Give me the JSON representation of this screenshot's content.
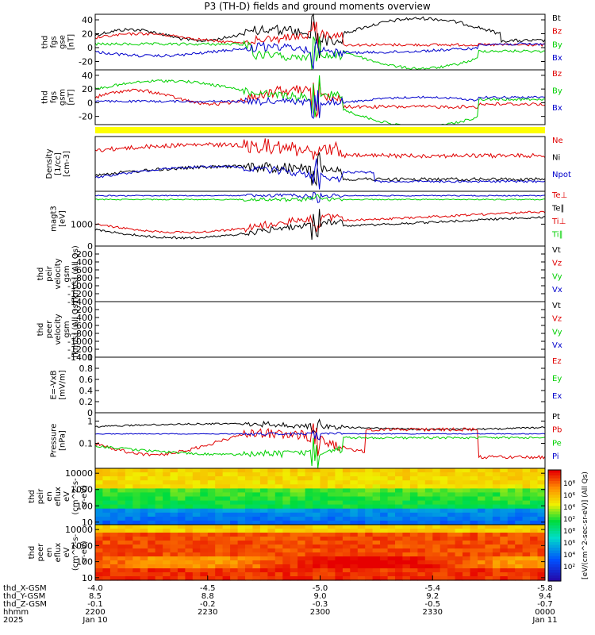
{
  "title": "P3 (TH-D) fields and ground moments overview",
  "colors": {
    "black": "#000000",
    "red": "#e00000",
    "green": "#00d000",
    "blue": "#0000cc",
    "yellow": "#ffff00"
  },
  "chart_data": [
    {
      "type": "line",
      "panel": "fgs_gse",
      "ylabel_lines": [
        "thd",
        "fgs",
        "gse",
        "[nT]"
      ],
      "yticks": [
        40,
        20,
        0,
        -20
      ],
      "ylim": [
        -32,
        48
      ],
      "series": [
        {
          "name": "Bt",
          "color": "black"
        },
        {
          "name": "Bz",
          "color": "red"
        },
        {
          "name": "By",
          "color": "green"
        },
        {
          "name": "Bx",
          "color": "blue"
        }
      ]
    },
    {
      "type": "line",
      "panel": "fgs_gsm",
      "ylabel_lines": [
        "thd",
        "fgs",
        "gsm",
        "[nT]"
      ],
      "yticks": [
        40,
        20,
        0,
        -20
      ],
      "ylim": [
        -32,
        48
      ],
      "series": [
        {
          "name": "Bz",
          "color": "red"
        },
        {
          "name": "By",
          "color": "green"
        },
        {
          "name": "Bx",
          "color": "blue"
        }
      ]
    },
    {
      "type": "line",
      "panel": "density",
      "ylabel_lines": [
        "Density",
        "[1/cc]",
        "[cm-3]"
      ],
      "yticks": [],
      "series": [
        {
          "name": "Ne",
          "color": "red"
        },
        {
          "name": "Ni",
          "color": "black"
        },
        {
          "name": "Npot",
          "color": "blue"
        }
      ]
    },
    {
      "type": "line",
      "panel": "temperature",
      "ylabel_lines": [
        "magt3",
        "[eV]"
      ],
      "yticks": [
        1000
      ],
      "yscale": "log",
      "series": [
        {
          "name": "Te⊥",
          "color": "red"
        },
        {
          "name": "Te∥",
          "color": "black"
        },
        {
          "name": "Ti⊥",
          "color": "red"
        },
        {
          "name": "Ti∥",
          "color": "green"
        }
      ]
    },
    {
      "type": "line",
      "panel": "ion_velocity",
      "ylabel_lines": [
        "thd",
        "peir",
        "velocity",
        "gsm",
        "[km/s] (All Qs)"
      ],
      "yticks": [
        0,
        -200,
        -400,
        -600,
        -800,
        -1000,
        -1200,
        -1400
      ],
      "ylim": [
        -1400,
        0
      ],
      "series": [
        {
          "name": "Vt",
          "color": "black"
        },
        {
          "name": "Vz",
          "color": "red"
        },
        {
          "name": "Vy",
          "color": "green"
        },
        {
          "name": "Vx",
          "color": "blue"
        }
      ]
    },
    {
      "type": "line",
      "panel": "electron_velocity",
      "ylabel_lines": [
        "thd",
        "peer",
        "velocity",
        "gsm",
        "[km/s] (All Qs)"
      ],
      "yticks": [
        -200,
        -400,
        -600,
        -800,
        -1000,
        -1200,
        -1400
      ],
      "ylim": [
        -1400,
        0
      ],
      "series": [
        {
          "name": "Vt",
          "color": "black"
        },
        {
          "name": "Vz",
          "color": "red"
        },
        {
          "name": "Vy",
          "color": "green"
        },
        {
          "name": "Vx",
          "color": "blue"
        }
      ]
    },
    {
      "type": "line",
      "panel": "efield",
      "ylabel_lines": [
        "E=-VxB",
        "[mV/m]"
      ],
      "yticks": [
        1.0,
        0.8,
        0.6,
        0.4,
        0.2,
        0.0
      ],
      "ylim": [
        0,
        1
      ],
      "series": [
        {
          "name": "Ez",
          "color": "red"
        },
        {
          "name": "Ey",
          "color": "green"
        },
        {
          "name": "Ex",
          "color": "blue"
        }
      ]
    },
    {
      "type": "line",
      "panel": "pressure",
      "ylabel_lines": [
        "Pressure",
        "[nPa]"
      ],
      "yticks": [
        1,
        0.1
      ],
      "yscale": "log",
      "series": [
        {
          "name": "Pt",
          "color": "black"
        },
        {
          "name": "Pb",
          "color": "red"
        },
        {
          "name": "Pe",
          "color": "green"
        },
        {
          "name": "Pi",
          "color": "blue"
        }
      ]
    },
    {
      "type": "heatmap",
      "panel": "ion_spectrogram",
      "ylabel_lines": [
        "thd",
        "peir",
        "en",
        "eflux",
        "eV",
        "(cm^2-s-",
        "sr-eV)"
      ],
      "yticks": [
        10000,
        1000,
        100,
        10
      ],
      "yscale": "log"
    },
    {
      "type": "heatmap",
      "panel": "electron_spectrogram",
      "ylabel_lines": [
        "thd",
        "peer",
        "en",
        "eflux",
        "eV",
        "(cm^2-s-",
        "sr-eV)"
      ],
      "yticks": [
        10000,
        1000,
        100,
        10
      ],
      "yscale": "log"
    }
  ],
  "colorbar": {
    "label": "[eV/(cm^2-sec-sr-eV)] (All Qs)",
    "ticks_upper": [
      "10⁸",
      "10⁶",
      "10⁴",
      "10²"
    ],
    "ticks_lower": [
      "10⁸",
      "10⁶",
      "10⁴",
      "10²"
    ]
  },
  "x_axis": {
    "row_labels": [
      "thd_X-GSM",
      "thd_Y-GSM",
      "thd_Z-GSM",
      "hhmm",
      "2025"
    ],
    "ticks": [
      {
        "x": "-4.0",
        "y": "8.5",
        "z": "-0.1",
        "hhmm": "2200",
        "date": "Jan 10"
      },
      {
        "x": "-4.5",
        "y": "8.8",
        "z": "-0.2",
        "hhmm": "2230",
        "date": ""
      },
      {
        "x": "-5.0",
        "y": "9.0",
        "z": "-0.3",
        "hhmm": "2300",
        "date": ""
      },
      {
        "x": "-5.4",
        "y": "9.2",
        "z": "-0.5",
        "hhmm": "2330",
        "date": ""
      },
      {
        "x": "-5.8",
        "y": "9.4",
        "z": "-0.7",
        "hhmm": "0000",
        "date": "Jan 11"
      }
    ]
  }
}
